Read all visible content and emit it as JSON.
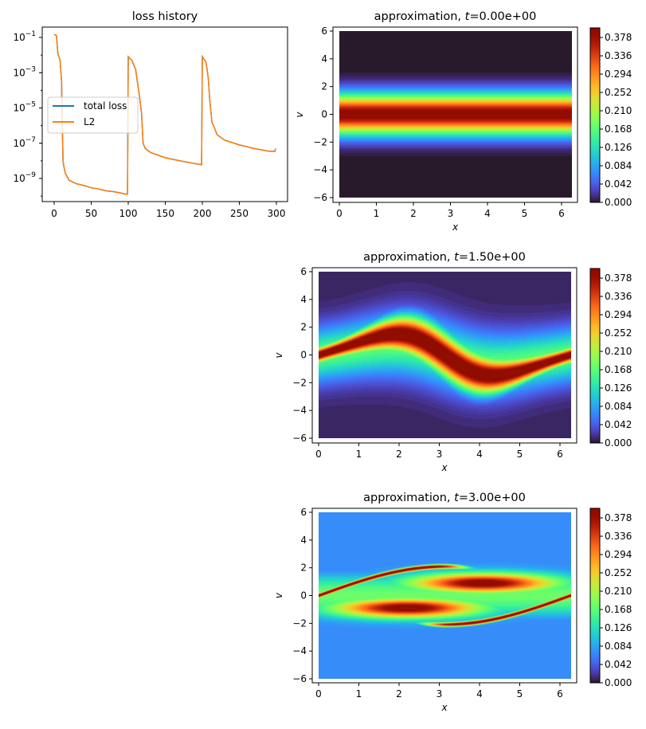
{
  "chart_data": [
    {
      "type": "line",
      "title": "loss history",
      "xlabel": "",
      "ylabel": "",
      "yscale": "log",
      "xlim": [
        -15,
        315
      ],
      "ylim": [
        3e-11,
        0.3
      ],
      "xticks": [
        0,
        50,
        100,
        150,
        200,
        250,
        300
      ],
      "yticks_exponent": [
        -1,
        -3,
        -5,
        -7,
        -9
      ],
      "grid": false,
      "legend": {
        "placement": "center-left",
        "entries": [
          "total loss",
          "L2"
        ]
      },
      "series": [
        {
          "name": "total loss",
          "color": "#1f77b4",
          "x": [
            0,
            3,
            5,
            8,
            10,
            11,
            12,
            13,
            15,
            20,
            30,
            40,
            50,
            60,
            70,
            80,
            90,
            95,
            99,
            100,
            105,
            110,
            113,
            115,
            118,
            120,
            123,
            130,
            150,
            170,
            190,
            199,
            200,
            205,
            208,
            210,
            213,
            216,
            220,
            230,
            250,
            270,
            290,
            298,
            299
          ],
          "y": [
            0.15,
            0.13,
            0.012,
            0.005,
            0.0003,
            1e-06,
            1e-08,
            5e-09,
            2e-09,
            8e-10,
            5e-10,
            4e-10,
            3e-10,
            2.5e-10,
            2e-10,
            1.8e-10,
            1.5e-10,
            1.3e-10,
            1.3e-10,
            0.008,
            0.005,
            0.0015,
            0.0002,
            5e-05,
            5e-06,
            1e-07,
            5e-08,
            3e-08,
            1.5e-08,
            1e-08,
            7e-09,
            6e-09,
            0.008,
            0.004,
            0.0005,
            3e-05,
            1.5e-06,
            8e-07,
            3e-07,
            1.5e-07,
            8e-08,
            5e-08,
            3.5e-08,
            3.5e-08,
            5e-08
          ]
        },
        {
          "name": "L2",
          "color": "#ff7f0e",
          "x": [
            0,
            3,
            5,
            8,
            10,
            11,
            12,
            13,
            15,
            20,
            30,
            40,
            50,
            60,
            70,
            80,
            90,
            95,
            99,
            100,
            105,
            110,
            113,
            115,
            118,
            120,
            123,
            130,
            150,
            170,
            190,
            199,
            200,
            205,
            208,
            210,
            213,
            216,
            220,
            230,
            250,
            270,
            290,
            298,
            299
          ],
          "y": [
            0.15,
            0.13,
            0.012,
            0.005,
            0.0003,
            1e-06,
            1e-08,
            5e-09,
            2e-09,
            8e-10,
            5e-10,
            4e-10,
            3e-10,
            2.5e-10,
            2e-10,
            1.8e-10,
            1.5e-10,
            1.3e-10,
            1.3e-10,
            0.008,
            0.005,
            0.0015,
            0.0002,
            5e-05,
            5e-06,
            1e-07,
            5e-08,
            3e-08,
            1.5e-08,
            1e-08,
            7e-09,
            6e-09,
            0.008,
            0.004,
            0.0005,
            3e-05,
            1.5e-06,
            8e-07,
            3e-07,
            1.5e-07,
            8e-08,
            5e-08,
            3.5e-08,
            3.5e-08,
            5e-08
          ]
        }
      ]
    },
    {
      "type": "heatmap",
      "title_prefix": "approximation, ",
      "title_var": "t",
      "title_value": "=0.00e+00",
      "xlabel": "x",
      "ylabel": "v",
      "xlim": [
        0,
        6.283
      ],
      "ylim": [
        -6,
        6
      ],
      "xticks": [
        0,
        1,
        2,
        3,
        4,
        5,
        6
      ],
      "yticks": [
        -6,
        -4,
        -2,
        0,
        2,
        4,
        6
      ],
      "colormap": "turbo",
      "clim": [
        0,
        0.4
      ],
      "colorbar_ticks": [
        "0.000",
        "0.042",
        "0.084",
        "0.126",
        "0.168",
        "0.210",
        "0.252",
        "0.294",
        "0.336",
        "0.378"
      ]
    },
    {
      "type": "heatmap",
      "title_prefix": "approximation, ",
      "title_var": "t",
      "title_value": "=1.50e+00",
      "xlabel": "x",
      "ylabel": "v",
      "xlim": [
        0,
        6.283
      ],
      "ylim": [
        -6,
        6
      ],
      "xticks": [
        0,
        1,
        2,
        3,
        4,
        5,
        6
      ],
      "yticks": [
        -6,
        -4,
        -2,
        0,
        2,
        4,
        6
      ],
      "colormap": "turbo",
      "clim": [
        0,
        0.4
      ],
      "colorbar_ticks": [
        "0.000",
        "0.042",
        "0.084",
        "0.126",
        "0.168",
        "0.210",
        "0.252",
        "0.294",
        "0.336",
        "0.378"
      ]
    },
    {
      "type": "heatmap",
      "title_prefix": "approximation, ",
      "title_var": "t",
      "title_value": "=3.00e+00",
      "xlabel": "x",
      "ylabel": "v",
      "xlim": [
        0,
        6.283
      ],
      "ylim": [
        -6,
        6
      ],
      "xticks": [
        0,
        1,
        2,
        3,
        4,
        5,
        6
      ],
      "yticks": [
        -6,
        -4,
        -2,
        0,
        2,
        4,
        6
      ],
      "colormap": "turbo",
      "clim": [
        0,
        0.4
      ],
      "colorbar_ticks": [
        "0.000",
        "0.042",
        "0.084",
        "0.126",
        "0.168",
        "0.210",
        "0.252",
        "0.294",
        "0.336",
        "0.378"
      ]
    }
  ]
}
